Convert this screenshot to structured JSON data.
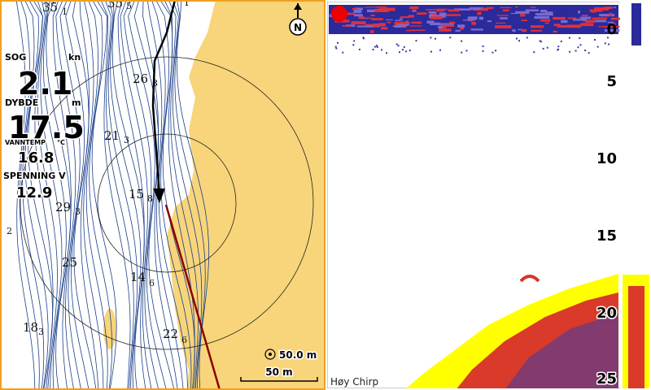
{
  "map": {
    "data_boxes": [
      {
        "label": "SOG",
        "unit": "kn",
        "value": "2.1"
      },
      {
        "label": "DYBDE",
        "unit": "m",
        "value": "17.5"
      },
      {
        "label": "VANNTEMP",
        "unit": "°C",
        "value": "16.8"
      },
      {
        "label": "SPENNING V",
        "value": "12.9"
      }
    ],
    "soundings": [
      {
        "depth": "35",
        "sub": "1"
      },
      {
        "depth": "35",
        "sub": "5"
      },
      {
        "sub": "1"
      },
      {
        "depth": "26",
        "sub": "8"
      },
      {
        "depth": "21",
        "sub": "3"
      },
      {
        "depth": "15",
        "sub": "8"
      },
      {
        "depth": "29",
        "sub": "3"
      },
      {
        "sub": "2"
      },
      {
        "depth": "25"
      },
      {
        "depth": "14",
        "sub": "6"
      },
      {
        "depth": "18",
        "sub": "3"
      },
      {
        "depth": "22",
        "sub": "6"
      }
    ],
    "compass": "N",
    "range": "50.0 m",
    "scale": "50 m"
  },
  "sonar": {
    "depth_scale": [
      "0",
      "5",
      "10",
      "15",
      "20",
      "25"
    ],
    "frequency": "Høy Chirp"
  }
}
